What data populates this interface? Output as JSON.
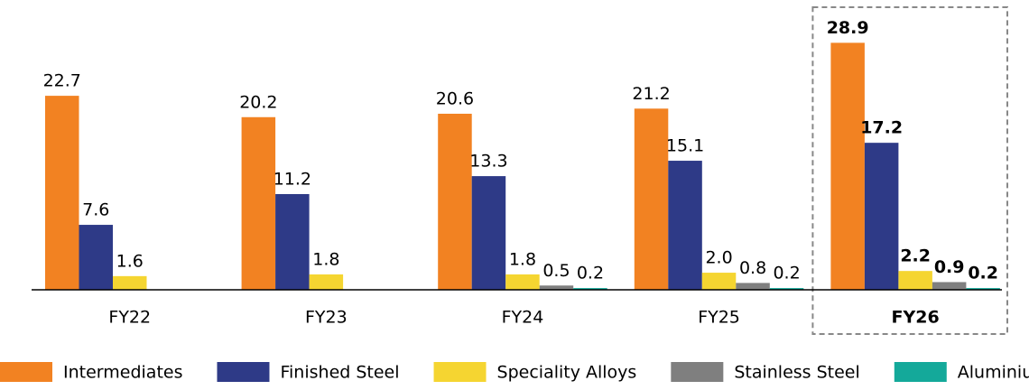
{
  "chart_data": {
    "type": "bar",
    "categories": [
      "FY22",
      "FY23",
      "FY24",
      "FY25",
      "FY26"
    ],
    "series": [
      {
        "name": "Intermediates",
        "color": "#f28222",
        "values": [
          22.7,
          20.2,
          20.6,
          21.2,
          28.9
        ]
      },
      {
        "name": "Finished Steel",
        "color": "#2e3a87",
        "values": [
          7.6,
          11.2,
          13.3,
          15.1,
          17.2
        ]
      },
      {
        "name": "Speciality Alloys",
        "color": "#f5d531",
        "values": [
          1.6,
          1.8,
          1.8,
          2.0,
          2.2
        ],
        "value_labels": [
          "1.6",
          "1.8",
          "1.8",
          "2.0",
          "2.2"
        ]
      },
      {
        "name": "Stainless Steel",
        "color": "#7f7f7f",
        "values": [
          null,
          null,
          0.5,
          0.8,
          0.9
        ]
      },
      {
        "name": "Aluminium",
        "color": "#14a99a",
        "values": [
          null,
          null,
          0.2,
          0.2,
          0.2
        ]
      }
    ],
    "ylim": [
      0,
      30
    ],
    "highlight": "FY26",
    "legend": "bottom"
  }
}
